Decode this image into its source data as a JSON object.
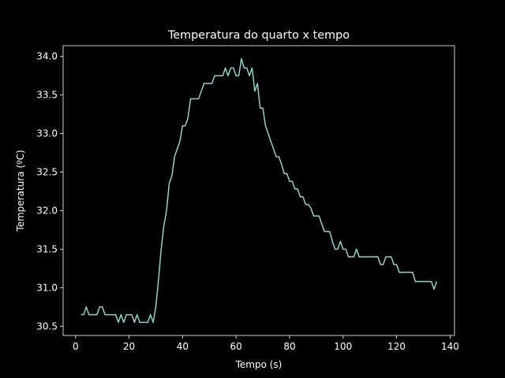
{
  "chart_data": {
    "type": "line",
    "title": "Temperatura do quarto x tempo",
    "x_label": "Tempo (s)",
    "y_label": "Temperatura (ºC)",
    "x": [
      2,
      3,
      4,
      5,
      6,
      7,
      8,
      9,
      10,
      11,
      12,
      13,
      14,
      15,
      16,
      17,
      18,
      19,
      20,
      21,
      22,
      23,
      24,
      25,
      26,
      27,
      28,
      29,
      30,
      31,
      32,
      33,
      34,
      35,
      36,
      37,
      38,
      39,
      40,
      41,
      42,
      43,
      44,
      45,
      46,
      47,
      48,
      49,
      50,
      51,
      52,
      53,
      54,
      55,
      56,
      57,
      58,
      59,
      60,
      61,
      62,
      63,
      64,
      65,
      66,
      67,
      68,
      69,
      70,
      71,
      72,
      73,
      74,
      75,
      76,
      77,
      78,
      79,
      80,
      81,
      82,
      83,
      84,
      85,
      86,
      87,
      88,
      89,
      90,
      91,
      92,
      93,
      94,
      95,
      96,
      97,
      98,
      99,
      100,
      101,
      102,
      103,
      104,
      105,
      106,
      107,
      108,
      109,
      110,
      111,
      112,
      113,
      114,
      115,
      116,
      117,
      118,
      119,
      120,
      121,
      122,
      123,
      124,
      125,
      126,
      127,
      128,
      129,
      130,
      131,
      132,
      133,
      134,
      135
    ],
    "series": [
      {
        "color": "#8dd3c7",
        "values": [
          30.65,
          30.65,
          30.75,
          30.65,
          30.65,
          30.65,
          30.65,
          30.75,
          30.75,
          30.65,
          30.65,
          30.65,
          30.65,
          30.65,
          30.55,
          30.65,
          30.55,
          30.65,
          30.65,
          30.65,
          30.55,
          30.65,
          30.55,
          30.55,
          30.55,
          30.55,
          30.65,
          30.55,
          30.75,
          31.1,
          31.5,
          31.8,
          32.0,
          32.35,
          32.45,
          32.7,
          32.8,
          32.9,
          33.1,
          33.1,
          33.2,
          33.45,
          33.45,
          33.45,
          33.45,
          33.55,
          33.65,
          33.65,
          33.65,
          33.65,
          33.75,
          33.75,
          33.75,
          33.75,
          33.85,
          33.75,
          33.85,
          33.85,
          33.75,
          33.75,
          33.97,
          33.85,
          33.85,
          33.75,
          33.85,
          33.55,
          33.65,
          33.33,
          33.33,
          33.1,
          33.0,
          32.9,
          32.8,
          32.7,
          32.7,
          32.6,
          32.48,
          32.48,
          32.38,
          32.38,
          32.28,
          32.28,
          32.18,
          32.18,
          32.08,
          32.08,
          32.03,
          31.93,
          31.93,
          31.93,
          31.83,
          31.73,
          31.73,
          31.73,
          31.6,
          31.5,
          31.5,
          31.6,
          31.5,
          31.5,
          31.4,
          31.4,
          31.4,
          31.5,
          31.4,
          31.4,
          31.4,
          31.4,
          31.4,
          31.4,
          31.4,
          31.4,
          31.3,
          31.3,
          31.4,
          31.4,
          31.4,
          31.3,
          31.3,
          31.2,
          31.2,
          31.2,
          31.2,
          31.2,
          31.2,
          31.08,
          31.08,
          31.08,
          31.08,
          31.08,
          31.08,
          31.08,
          30.98,
          31.08
        ]
      }
    ],
    "xlim": [
      -4.65,
      141.65
    ],
    "ylim": [
      30.38,
      34.14
    ],
    "xticks": [
      0,
      20,
      40,
      60,
      80,
      100,
      120,
      140
    ],
    "yticks": [
      30.5,
      {
        "value": 31.0,
        "label": "31.0"
      },
      31.5,
      {
        "value": 32.0,
        "label": "32.0"
      },
      32.5,
      {
        "value": 33.0,
        "label": "33.0"
      },
      33.5,
      {
        "value": 34.0,
        "label": "34.0"
      }
    ]
  }
}
